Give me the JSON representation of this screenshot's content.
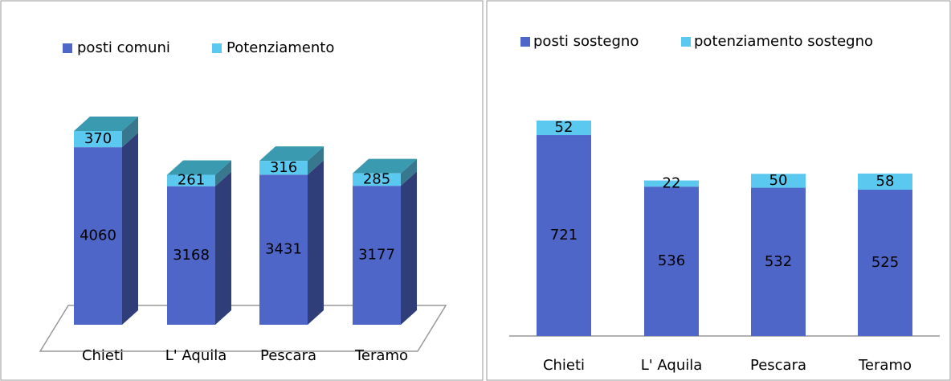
{
  "chart_data": [
    {
      "type": "bar3d",
      "stacked": true,
      "categories": [
        "Chieti",
        "L' Aquila",
        "Pescara",
        "Teramo"
      ],
      "series": [
        {
          "name": "posti comuni",
          "color": "#4f66c9",
          "values": [
            4060,
            3168,
            3431,
            3177
          ]
        },
        {
          "name": "Potenziamento",
          "color": "#5bc8ef",
          "values": [
            370,
            261,
            316,
            285
          ]
        }
      ]
    },
    {
      "type": "bar",
      "stacked": true,
      "categories": [
        "Chieti",
        "L' Aquila",
        "Pescara",
        "Teramo"
      ],
      "series": [
        {
          "name": "posti sostegno",
          "color": "#4f66c9",
          "values": [
            721,
            536,
            532,
            525
          ]
        },
        {
          "name": "potenziamento sostegno",
          "color": "#5bc8ef",
          "values": [
            52,
            22,
            50,
            58
          ]
        }
      ]
    }
  ]
}
